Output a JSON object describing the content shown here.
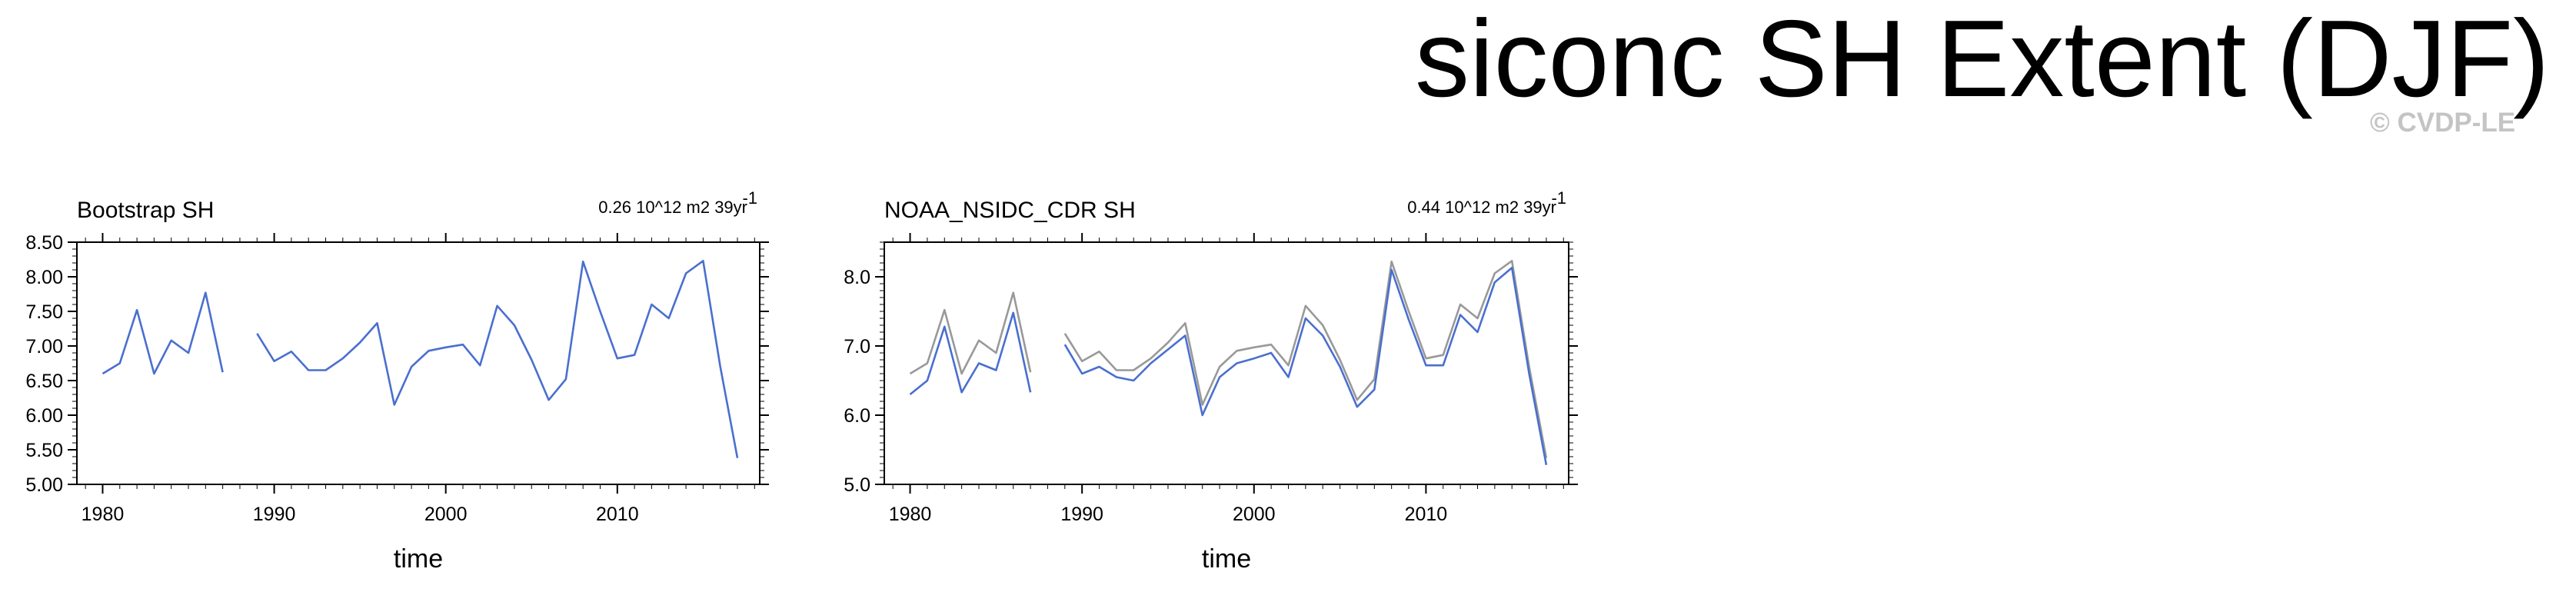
{
  "title": "siconc SH Extent (DJF)",
  "watermark": "© CVDP-LE",
  "colors": {
    "primary": "#4a6fcf",
    "reference": "#999999",
    "frame": "#000000"
  },
  "chart_data": [
    {
      "type": "line",
      "title": "Bootstrap SH",
      "stat_text": "0.26 10^12 m2 39yr",
      "stat_superscript": "-1",
      "xlabel": "time",
      "ylabel": "",
      "xlim": [
        1978.5,
        2018.3
      ],
      "ylim": [
        5.0,
        8.5
      ],
      "xticks": [
        1980,
        1990,
        2000,
        2010
      ],
      "xtick_labels": [
        "1980",
        "1990",
        "2000",
        "2010"
      ],
      "yticks": [
        5.0,
        5.5,
        6.0,
        6.5,
        7.0,
        7.5,
        8.0,
        8.5
      ],
      "ytick_labels": [
        "5.00",
        "5.50",
        "6.00",
        "6.50",
        "7.00",
        "7.50",
        "8.00",
        "8.50"
      ],
      "series": [
        {
          "color": "#4a6fcf",
          "x": [
            1980,
            1981,
            1982,
            1983,
            1984,
            1985,
            1986,
            1987,
            1988,
            1989,
            1990,
            1991,
            1992,
            1993,
            1994,
            1995,
            1996,
            1997,
            1998,
            1999,
            2000,
            2001,
            2002,
            2003,
            2004,
            2005,
            2006,
            2007,
            2008,
            2009,
            2010,
            2011,
            2012,
            2013,
            2014,
            2015,
            2016,
            2017
          ],
          "y": [
            6.6,
            6.75,
            7.52,
            6.6,
            7.08,
            6.9,
            7.77,
            6.62,
            null,
            7.18,
            6.78,
            6.92,
            6.65,
            6.65,
            6.82,
            7.05,
            7.33,
            6.15,
            6.7,
            6.93,
            6.98,
            7.02,
            6.72,
            7.58,
            7.3,
            6.8,
            6.22,
            6.52,
            8.22,
            7.5,
            6.82,
            6.87,
            7.6,
            7.4,
            8.05,
            8.23,
            6.7,
            5.38
          ]
        }
      ]
    },
    {
      "type": "line",
      "title": "NOAA_NSIDC_CDR SH",
      "stat_text": "0.44 10^12 m2 39yr",
      "stat_superscript": "-1",
      "xlabel": "time",
      "ylabel": "",
      "xlim": [
        1978.5,
        2018.3
      ],
      "ylim": [
        5.0,
        8.5
      ],
      "xticks": [
        1980,
        1990,
        2000,
        2010
      ],
      "xtick_labels": [
        "1980",
        "1990",
        "2000",
        "2010"
      ],
      "yticks": [
        5.0,
        6.0,
        7.0,
        8.0
      ],
      "ytick_labels": [
        "5.0",
        "6.0",
        "7.0",
        "8.0"
      ],
      "series": [
        {
          "color": "#999999",
          "x": [
            1980,
            1981,
            1982,
            1983,
            1984,
            1985,
            1986,
            1987,
            1988,
            1989,
            1990,
            1991,
            1992,
            1993,
            1994,
            1995,
            1996,
            1997,
            1998,
            1999,
            2000,
            2001,
            2002,
            2003,
            2004,
            2005,
            2006,
            2007,
            2008,
            2009,
            2010,
            2011,
            2012,
            2013,
            2014,
            2015,
            2016,
            2017
          ],
          "y": [
            6.6,
            6.75,
            7.52,
            6.6,
            7.08,
            6.9,
            7.77,
            6.62,
            null,
            7.18,
            6.78,
            6.92,
            6.65,
            6.65,
            6.82,
            7.05,
            7.33,
            6.15,
            6.7,
            6.93,
            6.98,
            7.02,
            6.72,
            7.58,
            7.3,
            6.8,
            6.22,
            6.52,
            8.22,
            7.5,
            6.82,
            6.87,
            7.6,
            7.4,
            8.05,
            8.23,
            6.7,
            5.38
          ]
        },
        {
          "color": "#4a6fcf",
          "x": [
            1980,
            1981,
            1982,
            1983,
            1984,
            1985,
            1986,
            1987,
            1988,
            1989,
            1990,
            1991,
            1992,
            1993,
            1994,
            1995,
            1996,
            1997,
            1998,
            1999,
            2000,
            2001,
            2002,
            2003,
            2004,
            2005,
            2006,
            2007,
            2008,
            2009,
            2010,
            2011,
            2012,
            2013,
            2014,
            2015,
            2016,
            2017
          ],
          "y": [
            6.3,
            6.5,
            7.28,
            6.33,
            6.75,
            6.65,
            7.48,
            6.33,
            null,
            7.02,
            6.6,
            6.7,
            6.55,
            6.5,
            6.75,
            6.95,
            7.15,
            6.0,
            6.55,
            6.75,
            6.82,
            6.9,
            6.55,
            7.4,
            7.15,
            6.7,
            6.12,
            6.37,
            8.1,
            7.38,
            6.72,
            6.72,
            7.45,
            7.2,
            7.92,
            8.13,
            6.6,
            5.28
          ]
        }
      ]
    }
  ]
}
